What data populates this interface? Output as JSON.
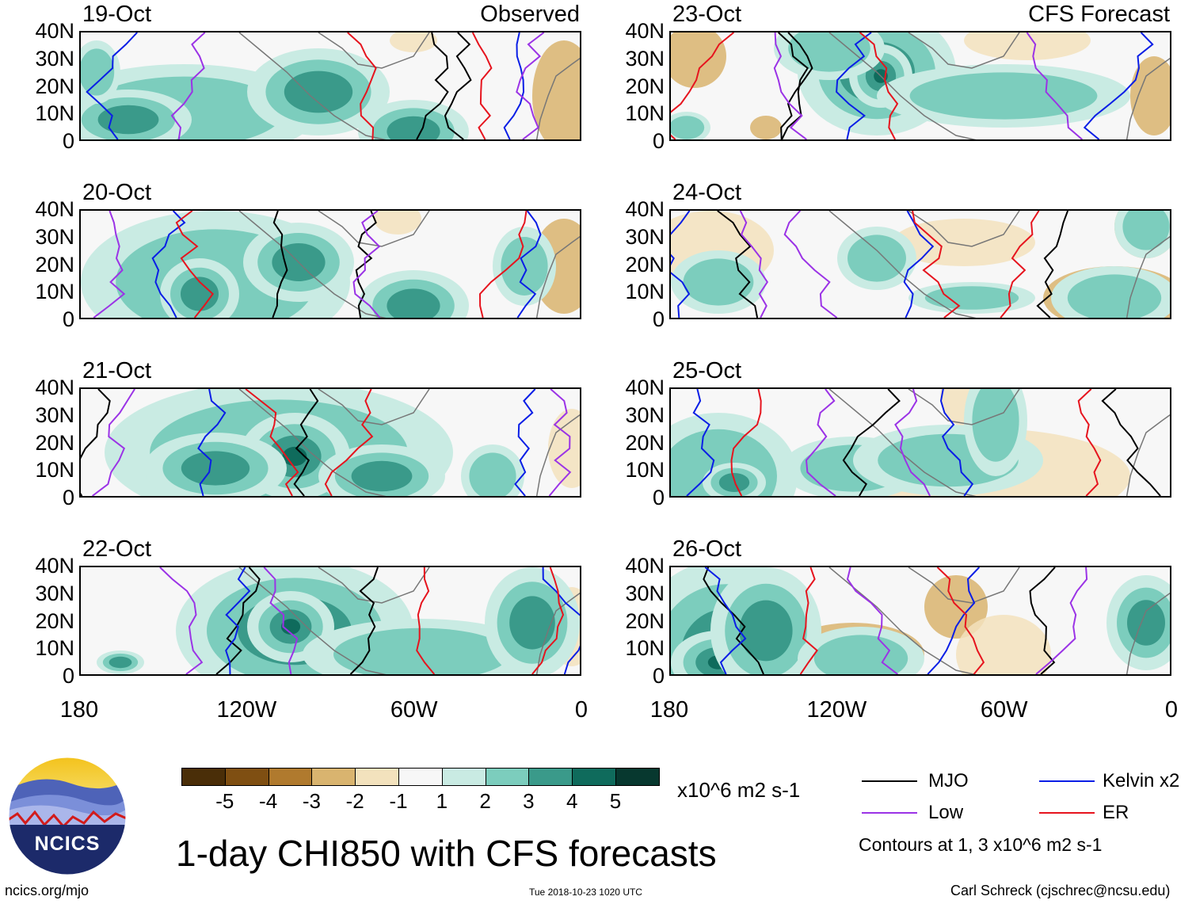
{
  "chart_data": {
    "type": "heatmap",
    "title": "1-day CHI850 with CFS forecasts",
    "variable": "CHI850",
    "units": "x10^6 m2 s-1",
    "observed_label": "Observed",
    "forecast_label": "CFS Forecast",
    "x_ticks": [
      "180",
      "120W",
      "60W",
      "0"
    ],
    "y_ticks": [
      "40N",
      "30N",
      "20N",
      "10N",
      "0"
    ],
    "xlim": [
      -180,
      0
    ],
    "ylim": [
      0,
      40
    ],
    "panels": [
      {
        "date": "19-Oct",
        "source": "Observed"
      },
      {
        "date": "20-Oct",
        "source": "Observed"
      },
      {
        "date": "21-Oct",
        "source": "Observed"
      },
      {
        "date": "22-Oct",
        "source": "Observed"
      },
      {
        "date": "23-Oct",
        "source": "CFS Forecast"
      },
      {
        "date": "24-Oct",
        "source": "CFS Forecast"
      },
      {
        "date": "25-Oct",
        "source": "CFS Forecast"
      },
      {
        "date": "26-Oct",
        "source": "CFS Forecast"
      }
    ],
    "colorbar": {
      "ticks": [
        "-5",
        "-4",
        "-3",
        "-2",
        "-1",
        "1",
        "2",
        "3",
        "4",
        "5"
      ],
      "colors": [
        "#4a2e08",
        "#7f4f12",
        "#b07a2e",
        "#d9b46f",
        "#f3e2bd",
        "#f7f7f7",
        "#c9ebe3",
        "#7ccdbd",
        "#3a9a8a",
        "#0f6b5c",
        "#07382f"
      ]
    },
    "contours": {
      "legend": [
        {
          "name": "MJO",
          "color": "#000000"
        },
        {
          "name": "Kelvin x2",
          "color": "#0a1ee6"
        },
        {
          "name": "Low",
          "color": "#9b33e6"
        },
        {
          "name": "ER",
          "color": "#e6141e"
        }
      ],
      "note": "Contours at 1, 3 x10^6 m2 s-1"
    }
  },
  "footer": {
    "logo_text": "NCICS",
    "url": "ncics.org/mjo",
    "timestamp": "Tue 2018-10-23 1020 UTC",
    "credit": "Carl Schreck (cjschrec@ncsu.edu)"
  }
}
